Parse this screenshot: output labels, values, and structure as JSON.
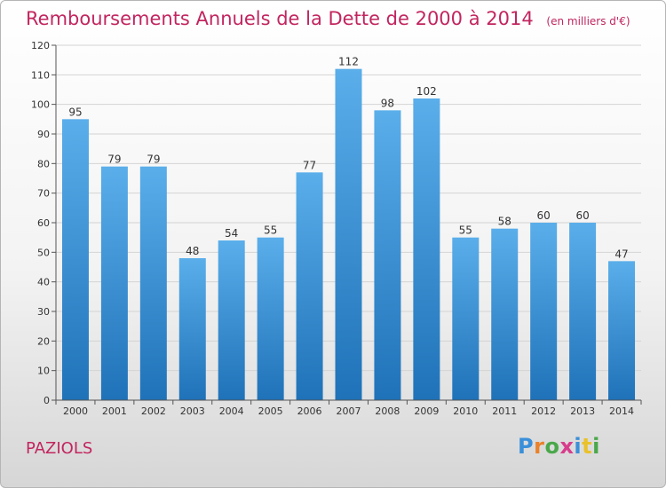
{
  "header": {
    "title": "Remboursements Annuels de la Dette de 2000 à 2014",
    "unit": "(en milliers d'€)"
  },
  "footer": {
    "commune": "PAZIOLS",
    "logo_letters": [
      "P",
      "r",
      "o",
      "x",
      "i",
      "t",
      "i"
    ]
  },
  "colors": {
    "title": "#c2255f",
    "bar_top": "#5aaeea",
    "bar_bottom": "#1f72b8"
  },
  "chart_data": {
    "type": "bar",
    "title": "Remboursements Annuels de la Dette de 2000 à 2014",
    "categories": [
      "2000",
      "2001",
      "2002",
      "2003",
      "2004",
      "2005",
      "2006",
      "2007",
      "2008",
      "2009",
      "2010",
      "2011",
      "2012",
      "2013",
      "2014"
    ],
    "values": [
      95,
      79,
      79,
      48,
      54,
      55,
      77,
      112,
      98,
      102,
      55,
      58,
      60,
      60,
      47
    ],
    "ylim": [
      0,
      120
    ],
    "yticks": [
      0,
      10,
      20,
      30,
      40,
      50,
      60,
      70,
      80,
      90,
      100,
      110,
      120
    ],
    "grid": true,
    "xlabel": "",
    "ylabel": ""
  }
}
